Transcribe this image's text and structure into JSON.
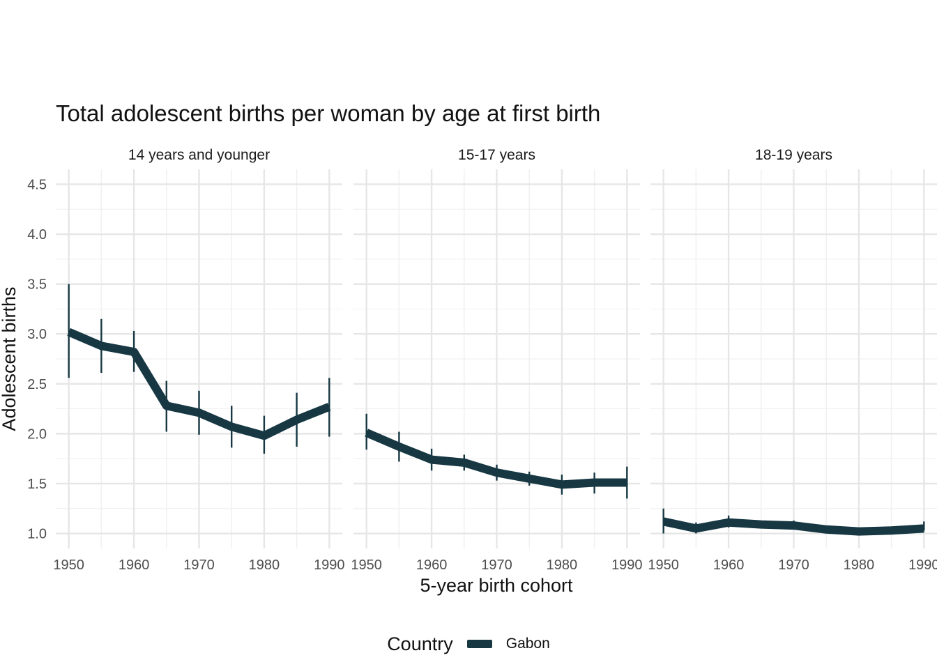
{
  "colors": {
    "series": "#173843",
    "grid_major": "#e6e6e6",
    "grid_minor": "#f1f1f1",
    "text": "#4d4d4d"
  },
  "chart_data": {
    "type": "line",
    "title": "Total adolescent births per woman by age at first birth",
    "xlabel": "5-year birth cohort",
    "ylabel": "Adolescent births",
    "ylim": [
      0.85,
      4.65
    ],
    "xlim": [
      1948,
      1992
    ],
    "x_ticks": [
      "1950",
      "1960",
      "1970",
      "1980",
      "1990"
    ],
    "y_ticks": [
      "1.0",
      "1.5",
      "2.0",
      "2.5",
      "3.0",
      "3.5",
      "4.0",
      "4.5"
    ],
    "grid": true,
    "legend": {
      "title": "Country",
      "position": "bottom",
      "entries": [
        "Gabon"
      ]
    },
    "panels": [
      {
        "label": "14 years and younger",
        "series": [
          {
            "name": "Gabon",
            "x": [
              1950,
              1955,
              1960,
              1965,
              1970,
              1975,
              1980,
              1985,
              1990
            ],
            "y": [
              3.02,
              2.88,
              2.82,
              2.28,
              2.21,
              2.07,
              1.98,
              2.14,
              2.27
            ],
            "lower": [
              2.56,
              2.61,
              2.62,
              2.02,
              1.99,
              1.86,
              1.8,
              1.87,
              1.97
            ],
            "upper": [
              3.5,
              3.15,
              3.03,
              2.53,
              2.43,
              2.28,
              2.18,
              2.41,
              2.56
            ]
          }
        ]
      },
      {
        "label": "15-17 years",
        "series": [
          {
            "name": "Gabon",
            "x": [
              1950,
              1955,
              1960,
              1965,
              1970,
              1975,
              1980,
              1985,
              1990
            ],
            "y": [
              2.01,
              1.87,
              1.74,
              1.71,
              1.61,
              1.55,
              1.49,
              1.51,
              1.51
            ],
            "lower": [
              1.84,
              1.72,
              1.63,
              1.63,
              1.53,
              1.48,
              1.39,
              1.4,
              1.35
            ],
            "upper": [
              2.2,
              2.02,
              1.85,
              1.79,
              1.69,
              1.62,
              1.59,
              1.61,
              1.67
            ]
          }
        ]
      },
      {
        "label": "18-19 years",
        "series": [
          {
            "name": "Gabon",
            "x": [
              1950,
              1955,
              1960,
              1965,
              1970,
              1975,
              1980,
              1985,
              1990
            ],
            "y": [
              1.12,
              1.05,
              1.11,
              1.09,
              1.08,
              1.04,
              1.02,
              1.03,
              1.05
            ],
            "lower": [
              1.0,
              1.0,
              1.06,
              1.06,
              1.05,
              1.02,
              1.01,
              1.02,
              1.03
            ],
            "upper": [
              1.25,
              1.11,
              1.18,
              1.12,
              1.13,
              1.06,
              1.04,
              1.05,
              1.12
            ]
          }
        ]
      }
    ]
  }
}
